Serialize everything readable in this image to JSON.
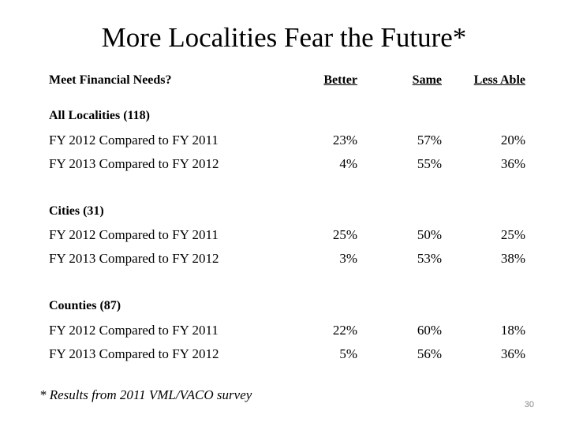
{
  "title": "More Localities Fear the Future*",
  "header": {
    "question": "Meet Financial Needs?",
    "better": "Better",
    "same": "Same",
    "less_able": "Less Able"
  },
  "groups": [
    {
      "name": "All Localities (118)",
      "rows": [
        {
          "label": "FY 2012 Compared to FY 2011",
          "better": "23%",
          "same": "57%",
          "less_able": "20%"
        },
        {
          "label": "FY 2013 Compared to FY 2012",
          "better": "4%",
          "same": "55%",
          "less_able": "36%"
        }
      ]
    },
    {
      "name": "Cities (31)",
      "rows": [
        {
          "label": "FY 2012 Compared to FY 2011",
          "better": "25%",
          "same": "50%",
          "less_able": "25%"
        },
        {
          "label": "FY 2013 Compared to FY 2012",
          "better": "3%",
          "same": "53%",
          "less_able": "38%"
        }
      ]
    },
    {
      "name": "Counties (87)",
      "rows": [
        {
          "label": "FY 2012 Compared to FY 2011",
          "better": "22%",
          "same": "60%",
          "less_able": "18%"
        },
        {
          "label": "FY 2013 Compared to FY 2012",
          "better": "5%",
          "same": "56%",
          "less_able": "36%"
        }
      ]
    }
  ],
  "footnote": "* Results from 2011 VML/VACO survey",
  "page_number": "30"
}
